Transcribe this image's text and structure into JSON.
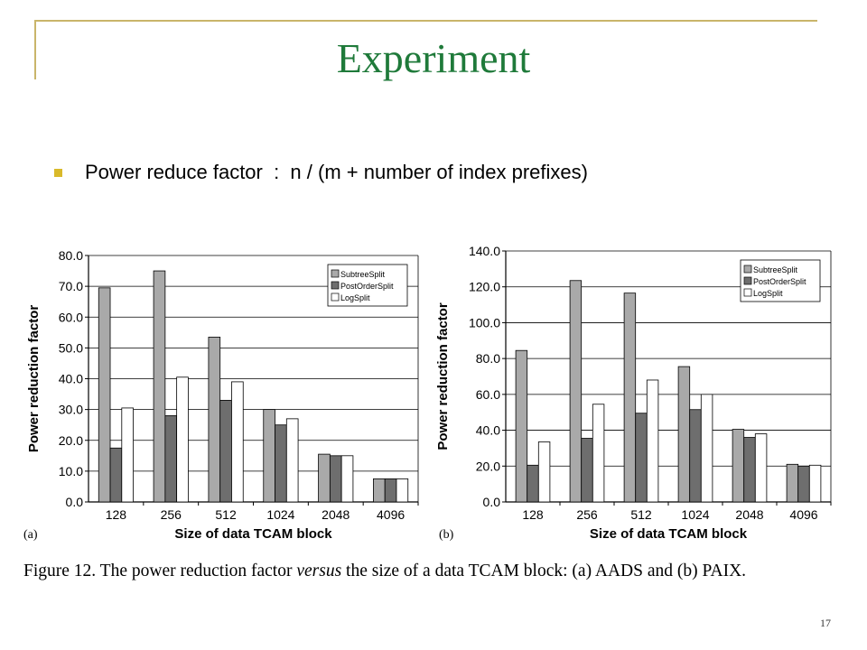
{
  "slide": {
    "title": "Experiment",
    "bullet": "Power reduce factor  :  n / (m + number of index prefixes)",
    "page_number": "17"
  },
  "caption": {
    "prefix": "Figure 12. The power reduction factor ",
    "versus": "versus",
    "suffix": " the size of a data TCAM block: (a) AADS and (b) PAIX."
  },
  "colors": {
    "title": "#1f7a3a",
    "accent_line": "#c9b56a",
    "bullet": "#d9b92a",
    "SubtreeSplit": "#a9a9a9",
    "PostOrderSplit": "#6e6e6e",
    "LogSplit": "#ffffff"
  },
  "chart_data": [
    {
      "type": "bar",
      "panel_label": "(a)",
      "categories": [
        "128",
        "256",
        "512",
        "1024",
        "2048",
        "4096"
      ],
      "series": [
        {
          "name": "SubtreeSplit",
          "values": [
            69.5,
            75,
            53.5,
            30,
            15.5,
            7.5
          ]
        },
        {
          "name": "PostOrderSplit",
          "values": [
            17.5,
            28,
            33,
            25,
            15,
            7.5
          ]
        },
        {
          "name": "LogSplit",
          "values": [
            30.5,
            40.5,
            39,
            27,
            15,
            7.5
          ]
        }
      ],
      "xlabel": "Size of data TCAM block",
      "ylabel": "Power reduction factor",
      "ylim": [
        0,
        80
      ],
      "yticks": [
        "0.0",
        "10.0",
        "20.0",
        "30.0",
        "40.0",
        "50.0",
        "60.0",
        "70.0",
        "80.0"
      ],
      "legend": "top-right",
      "grid": true
    },
    {
      "type": "bar",
      "panel_label": "(b)",
      "categories": [
        "128",
        "256",
        "512",
        "1024",
        "2048",
        "4096"
      ],
      "series": [
        {
          "name": "SubtreeSplit",
          "values": [
            84.5,
            123.5,
            116.5,
            75.5,
            40.5,
            21
          ]
        },
        {
          "name": "PostOrderSplit",
          "values": [
            20.5,
            35.5,
            49.5,
            51.5,
            36,
            20
          ]
        },
        {
          "name": "LogSplit",
          "values": [
            33.5,
            54.5,
            68,
            60,
            38,
            20.5
          ]
        }
      ],
      "xlabel": "Size of data TCAM block",
      "ylabel": "Power reduction factor",
      "ylim": [
        0,
        140
      ],
      "yticks": [
        "0.0",
        "20.0",
        "40.0",
        "60.0",
        "80.0",
        "100.0",
        "120.0",
        "140.0"
      ],
      "legend": "top-right",
      "grid": true
    }
  ]
}
